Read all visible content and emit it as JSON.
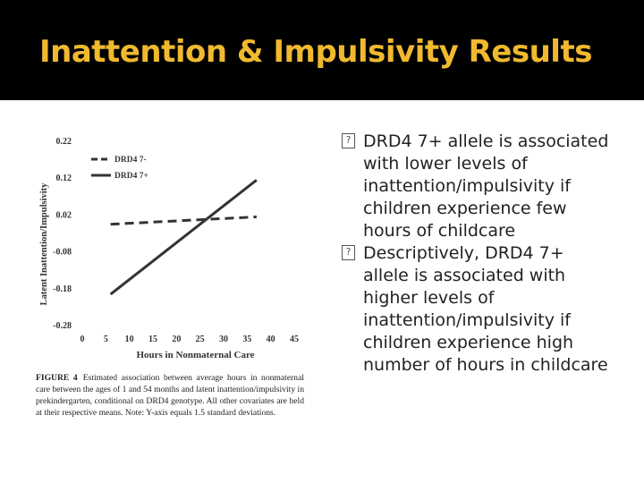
{
  "slide": {
    "title": "Inattention & Impulsivity Results",
    "colors": {
      "header_bg": "#000000",
      "title": "#f0b92e",
      "body_text": "#222222"
    }
  },
  "bullets": [
    {
      "icon": "missing-glyph-icon",
      "text": "DRD4 7+ allele is associated with lower levels of inattention/impulsivity if children experience few hours of childcare"
    },
    {
      "icon": "missing-glyph-icon",
      "text": "Descriptively, DRD4 7+ allele is associated with higher levels of inattention/impulsivity if children experience high number of hours in childcare"
    }
  ],
  "figure": {
    "caption_lead": "FIGURE 4",
    "caption_text": "Estimated association between average hours in nonmaternal care between the ages of 1 and 54 months and latent inattention/impulsivity in prekindergarten, conditional on DRD4 genotype. All other covariates are held at their respective means. Note: Y-axis equals 1.5 standard deviations."
  },
  "chart_data": {
    "type": "line",
    "title": "",
    "xlabel": "Hours in Nonmaternal Care",
    "ylabel": "Latent Inattention/Impulsivity",
    "xlim": [
      0,
      45
    ],
    "ylim": [
      -0.28,
      0.22
    ],
    "x_ticks": [
      0,
      5,
      10,
      15,
      20,
      25,
      30,
      35,
      40,
      45
    ],
    "y_ticks": [
      0.22,
      0.12,
      0.02,
      -0.08,
      -0.18,
      -0.28
    ],
    "y_tick_labels": [
      "0.22",
      "0.12",
      "0.02",
      "-0.08",
      "-0.18",
      "-0.28"
    ],
    "grid": false,
    "legend_position": "top-left",
    "series": [
      {
        "name": "DRD4 7-",
        "style": "dashed",
        "color": "#333333",
        "x": [
          6,
          37
        ],
        "y": [
          -0.005,
          0.015
        ]
      },
      {
        "name": "DRD4 7+",
        "style": "solid",
        "color": "#333333",
        "x": [
          6,
          37
        ],
        "y": [
          -0.195,
          0.115
        ]
      }
    ]
  }
}
